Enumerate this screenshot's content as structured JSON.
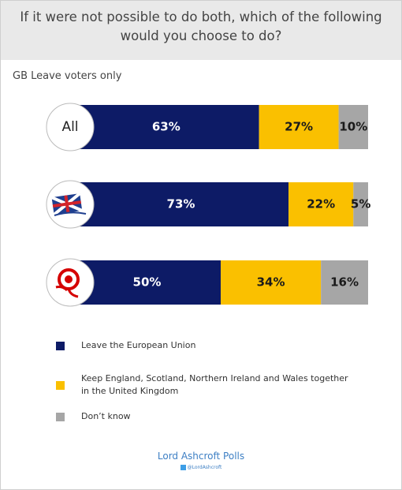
{
  "chart_data": {
    "type": "stacked-barh",
    "title": "If it were not possible to do both, which of the following would you choose to do?",
    "subtitle": "GB Leave voters only",
    "categories": [
      "All",
      null,
      null
    ],
    "xlim": [
      0,
      100
    ],
    "series": [
      {
        "name": "Leave the European Union",
        "color": "#0d1b66",
        "label_color": "#ffffff",
        "values": [
          63,
          73,
          50
        ],
        "value_labels": [
          "63%",
          "73%",
          "50%"
        ]
      },
      {
        "name": "Keep England, Scotland, Northern Ireland and Wales together in the United Kingdom",
        "color": "#fac000",
        "label_color": "#1a1a1a",
        "values": [
          27,
          22,
          34
        ],
        "value_labels": [
          "27%",
          "22%",
          "34%"
        ]
      },
      {
        "name": "Don’t know",
        "color": "#a6a6a6",
        "label_color": "#1a1a1a",
        "values": [
          10,
          5,
          16
        ],
        "value_labels": [
          "10%",
          "5%",
          "16%"
        ]
      }
    ],
    "source": "Lord Ashcroft Polls",
    "source_handle": "@LordAshcroft"
  }
}
